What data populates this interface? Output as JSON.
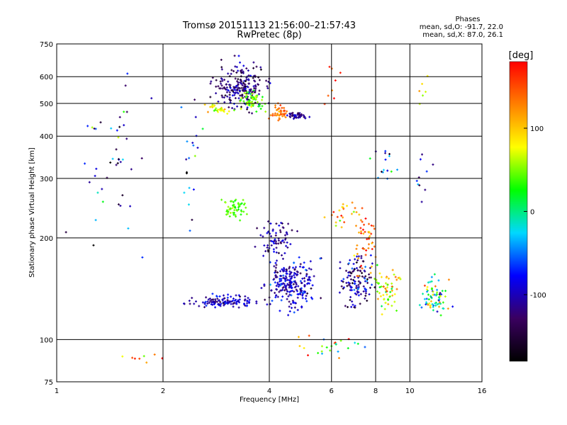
{
  "chart_data": {
    "type": "scatter",
    "title": "Tromsø 20151113 21:56:00–21:57:43",
    "subtitle": "RwPretec (8p)",
    "xlabel": "Frequency [MHz]",
    "ylabel": "Stationary phase Virtual Height [km]",
    "x_scale": "log",
    "y_scale": "log",
    "xlim": [
      1,
      16
    ],
    "ylim": [
      75,
      750
    ],
    "x_ticks": [
      "1",
      "2",
      "4",
      "6",
      "8",
      "10",
      "16"
    ],
    "x_tick_values": [
      1,
      2,
      4,
      6,
      8,
      10,
      16
    ],
    "y_ticks": [
      "75",
      "100",
      "200",
      "300",
      "400",
      "500",
      "600",
      "750"
    ],
    "y_tick_values": [
      75,
      100,
      200,
      300,
      400,
      500,
      600,
      750
    ],
    "grid": true,
    "phase_stats": {
      "heading": "Phases",
      "line_o": "mean, sd,O:  -91.7, 22.0",
      "line_x": "mean, sd,X:   87.0, 26.1"
    },
    "colorbar": {
      "unit_label": "[deg]",
      "range": [
        -180,
        180
      ],
      "ticks": [
        "100",
        "0",
        "-100"
      ],
      "tick_values": [
        100,
        0,
        -100
      ],
      "stops": [
        "#000000",
        "#3a0060",
        "#0000ff",
        "#00d8ff",
        "#00ff00",
        "#ffff00",
        "#ff8000",
        "#ff0000"
      ]
    },
    "clusters": [
      {
        "f": 3.3,
        "h": 560,
        "fs": 0.12,
        "hs": 0.1,
        "n": 220,
        "phase": -120,
        "ps": 30
      },
      {
        "f": 3.6,
        "h": 505,
        "fs": 0.06,
        "hs": 0.05,
        "n": 60,
        "phase": 40,
        "ps": 30
      },
      {
        "f": 4.3,
        "h": 470,
        "fs": 0.04,
        "hs": 0.04,
        "n": 45,
        "phase": 140,
        "ps": 25
      },
      {
        "f": 4.8,
        "h": 460,
        "fs": 0.05,
        "hs": 0.02,
        "n": 45,
        "phase": -110,
        "ps": 20
      },
      {
        "f": 2.9,
        "h": 480,
        "fs": 0.07,
        "hs": 0.03,
        "n": 30,
        "phase": 70,
        "ps": 30
      },
      {
        "f": 3.2,
        "h": 245,
        "fs": 0.06,
        "hs": 0.05,
        "n": 55,
        "phase": 40,
        "ps": 15
      },
      {
        "f": 3.0,
        "h": 130,
        "fs": 0.14,
        "hs": 0.03,
        "n": 120,
        "phase": -100,
        "ps": 30
      },
      {
        "f": 4.6,
        "h": 145,
        "fs": 0.1,
        "hs": 0.12,
        "n": 240,
        "phase": -100,
        "ps": 35
      },
      {
        "f": 4.2,
        "h": 200,
        "fs": 0.08,
        "hs": 0.08,
        "n": 70,
        "phase": -110,
        "ps": 30
      },
      {
        "f": 7.0,
        "h": 150,
        "fs": 0.07,
        "hs": 0.12,
        "n": 130,
        "phase": -110,
        "ps": 50
      },
      {
        "f": 7.5,
        "h": 190,
        "fs": 0.05,
        "hs": 0.15,
        "n": 45,
        "phase": 140,
        "ps": 40
      },
      {
        "f": 8.6,
        "h": 140,
        "fs": 0.06,
        "hs": 0.1,
        "n": 60,
        "phase": 80,
        "ps": 60
      },
      {
        "f": 11.8,
        "h": 135,
        "fs": 0.06,
        "hs": 0.1,
        "n": 75,
        "phase": 20,
        "ps": 100
      },
      {
        "f": 1.4,
        "h": 350,
        "fs": 0.15,
        "hs": 0.45,
        "n": 45,
        "phase": -80,
        "ps": 90
      },
      {
        "f": 8.5,
        "h": 330,
        "fs": 0.06,
        "hs": 0.08,
        "n": 15,
        "phase": -60,
        "ps": 80
      },
      {
        "f": 10.8,
        "h": 550,
        "fs": 0.04,
        "hs": 0.08,
        "n": 6,
        "phase": 80,
        "ps": 40
      },
      {
        "f": 11.0,
        "h": 300,
        "fs": 0.05,
        "hs": 0.15,
        "n": 10,
        "phase": -90,
        "ps": 60
      },
      {
        "f": 6.0,
        "h": 560,
        "fs": 0.04,
        "hs": 0.1,
        "n": 8,
        "phase": 150,
        "ps": 40
      },
      {
        "f": 6.5,
        "h": 230,
        "fs": 0.08,
        "hs": 0.08,
        "n": 25,
        "phase": 120,
        "ps": 60
      },
      {
        "f": 2.4,
        "h": 330,
        "fs": 0.06,
        "hs": 0.25,
        "n": 20,
        "phase": -60,
        "ps": 100
      },
      {
        "f": 6.0,
        "h": 95,
        "fs": 0.2,
        "hs": 0.06,
        "n": 25,
        "phase": 60,
        "ps": 100
      },
      {
        "f": 1.6,
        "h": 88,
        "fs": 0.15,
        "hs": 0.05,
        "n": 8,
        "phase": 130,
        "ps": 60
      }
    ]
  }
}
